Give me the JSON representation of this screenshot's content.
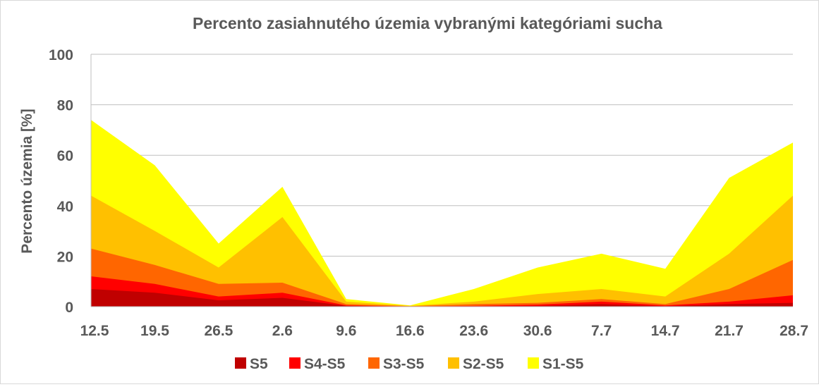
{
  "chart_data": {
    "type": "area",
    "title": "Percento zasiahnutého územia vybranými kategóriami sucha",
    "ylabel": "Percento územia  [%]",
    "xlabel": "",
    "ylim": [
      0,
      100
    ],
    "yticks": [
      0,
      20,
      40,
      60,
      80,
      100
    ],
    "grid": true,
    "legend_position": "bottom",
    "categories": [
      "12.5",
      "19.5",
      "26.5",
      "2.6",
      "9.6",
      "16.6",
      "23.6",
      "30.6",
      "7.7",
      "14.7",
      "21.7",
      "28.7"
    ],
    "series": [
      {
        "name": "S1-S5",
        "color": "#ffff00",
        "values": [
          74,
          56,
          25,
          47.5,
          3,
          0.5,
          7,
          15.5,
          21,
          15,
          51,
          65
        ]
      },
      {
        "name": "S2-S5",
        "color": "#ffc000",
        "values": [
          44,
          30,
          15.5,
          35.5,
          2,
          0.3,
          2,
          5,
          7,
          4,
          21,
          44
        ]
      },
      {
        "name": "S3-S5",
        "color": "#ff6600",
        "values": [
          23,
          16.5,
          9,
          9.5,
          1,
          0.2,
          1,
          1.5,
          3,
          1,
          7,
          18.5
        ]
      },
      {
        "name": "S4-S5",
        "color": "#ff0000",
        "values": [
          12,
          9,
          4,
          5.5,
          0.5,
          0.1,
          0.3,
          0.8,
          2,
          0.5,
          2,
          4.5
        ]
      },
      {
        "name": "S5",
        "color": "#c00000",
        "values": [
          7,
          5.5,
          2.5,
          3.5,
          0.3,
          0,
          0.1,
          0.3,
          1,
          0.2,
          1,
          1.5
        ]
      }
    ],
    "legend_order": [
      "S5",
      "S4-S5",
      "S3-S5",
      "S2-S5",
      "S1-S5"
    ]
  }
}
